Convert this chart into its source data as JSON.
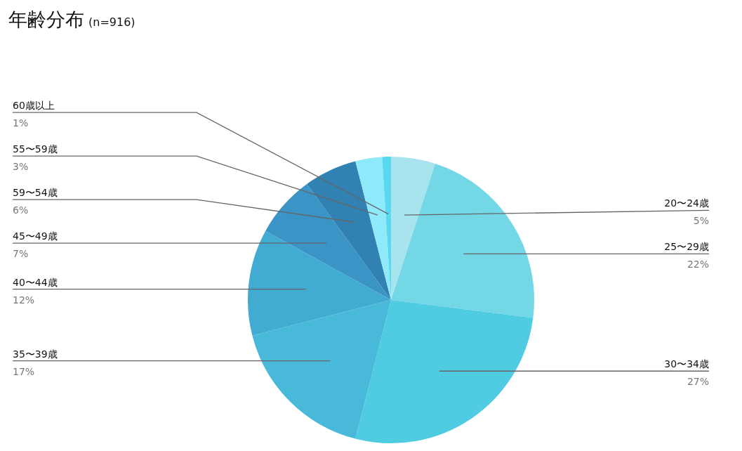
{
  "chart_data": {
    "type": "pie",
    "title": "年齢分布",
    "subtitle": "(n=916)",
    "categories": [
      "20〜24歳",
      "25〜29歳",
      "30〜34歳",
      "35〜39歳",
      "40〜44歳",
      "45〜49歳",
      "59〜54歳",
      "55〜59歳",
      "60歳以上"
    ],
    "values": [
      5,
      22,
      27,
      17,
      12,
      7,
      6,
      3,
      1
    ],
    "colors": [
      "#a8e4ee",
      "#74d7e6",
      "#4fcbe2",
      "#48b9d9",
      "#42abd2",
      "#3a95c6",
      "#3182b3",
      "#8eeafa",
      "#5ad8f0"
    ],
    "value_labels": [
      "5%",
      "22%",
      "27%",
      "17%",
      "12%",
      "7%",
      "6%",
      "3%",
      "1%"
    ],
    "legend": false
  }
}
